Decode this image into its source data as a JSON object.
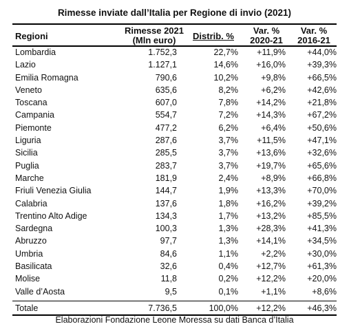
{
  "title": "Rimesse inviate dall’Italia per Regione di invio (2021)",
  "headers": {
    "regioni": "Regioni",
    "rimesse_line1": "Rimesse 2021",
    "rimesse_line2": "(Mln euro)",
    "distrib": "Distrib. %",
    "var1_line1": "Var. %",
    "var1_line2": "2020-21",
    "var2_line1": "Var. %",
    "var2_line2": "2016-21"
  },
  "rows": [
    {
      "regione": "Lombardia",
      "rimesse": "1.752,3",
      "distrib": "22,7%",
      "var_2020_21": "+11,9%",
      "var_2016_21": "+44,0%"
    },
    {
      "regione": "Lazio",
      "rimesse": "1.127,1",
      "distrib": "14,6%",
      "var_2020_21": "+16,0%",
      "var_2016_21": "+39,3%"
    },
    {
      "regione": "Emilia Romagna",
      "rimesse": "790,6",
      "distrib": "10,2%",
      "var_2020_21": "+9,8%",
      "var_2016_21": "+66,5%"
    },
    {
      "regione": "Veneto",
      "rimesse": "635,6",
      "distrib": "8,2%",
      "var_2020_21": "+6,2%",
      "var_2016_21": "+42,6%"
    },
    {
      "regione": "Toscana",
      "rimesse": "607,0",
      "distrib": "7,8%",
      "var_2020_21": "+14,2%",
      "var_2016_21": "+21,8%"
    },
    {
      "regione": "Campania",
      "rimesse": "554,7",
      "distrib": "7,2%",
      "var_2020_21": "+14,3%",
      "var_2016_21": "+67,2%"
    },
    {
      "regione": "Piemonte",
      "rimesse": "477,2",
      "distrib": "6,2%",
      "var_2020_21": "+6,4%",
      "var_2016_21": "+50,6%"
    },
    {
      "regione": "Liguria",
      "rimesse": "287,6",
      "distrib": "3,7%",
      "var_2020_21": "+11,5%",
      "var_2016_21": "+47,1%"
    },
    {
      "regione": "Sicilia",
      "rimesse": "285,5",
      "distrib": "3,7%",
      "var_2020_21": "+13,6%",
      "var_2016_21": "+32,6%"
    },
    {
      "regione": "Puglia",
      "rimesse": "283,7",
      "distrib": "3,7%",
      "var_2020_21": "+19,7%",
      "var_2016_21": "+65,6%"
    },
    {
      "regione": "Marche",
      "rimesse": "181,9",
      "distrib": "2,4%",
      "var_2020_21": "+8,9%",
      "var_2016_21": "+66,8%"
    },
    {
      "regione": "Friuli Venezia Giulia",
      "rimesse": "144,7",
      "distrib": "1,9%",
      "var_2020_21": "+13,3%",
      "var_2016_21": "+70,0%"
    },
    {
      "regione": "Calabria",
      "rimesse": "137,6",
      "distrib": "1,8%",
      "var_2020_21": "+16,2%",
      "var_2016_21": "+39,2%"
    },
    {
      "regione": "Trentino Alto Adige",
      "rimesse": "134,3",
      "distrib": "1,7%",
      "var_2020_21": "+13,2%",
      "var_2016_21": "+85,5%"
    },
    {
      "regione": "Sardegna",
      "rimesse": "100,3",
      "distrib": "1,3%",
      "var_2020_21": "+28,3%",
      "var_2016_21": "+41,3%"
    },
    {
      "regione": "Abruzzo",
      "rimesse": "97,7",
      "distrib": "1,3%",
      "var_2020_21": "+14,1%",
      "var_2016_21": "+34,5%"
    },
    {
      "regione": "Umbria",
      "rimesse": "84,6",
      "distrib": "1,1%",
      "var_2020_21": "+2,2%",
      "var_2016_21": "+30,0%"
    },
    {
      "regione": "Basilicata",
      "rimesse": "32,6",
      "distrib": "0,4%",
      "var_2020_21": "+12,7%",
      "var_2016_21": "+61,3%"
    },
    {
      "regione": "Molise",
      "rimesse": "11,8",
      "distrib": "0,2%",
      "var_2020_21": "+12,2%",
      "var_2016_21": "+20,0%"
    },
    {
      "regione": "Valle d’Aosta",
      "rimesse": "9,5",
      "distrib": "0,1%",
      "var_2020_21": "+1,1%",
      "var_2016_21": "+8,6%"
    }
  ],
  "total": {
    "regione": "Totale",
    "rimesse": "7.736,5",
    "distrib": "100,0%",
    "var_2020_21": "+12,2%",
    "var_2016_21": "+46,3%"
  },
  "source": "Elaborazioni Fondazione Leone Moressa su dati Banca d’Italia"
}
